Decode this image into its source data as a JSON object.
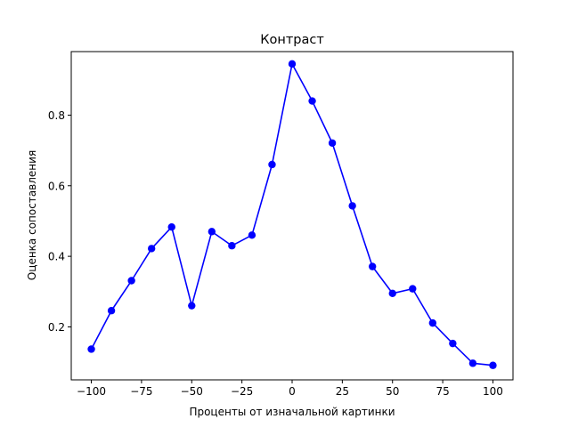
{
  "chart_data": {
    "type": "line",
    "title": "Контраст",
    "xlabel": "Проценты от изначальной картинки",
    "ylabel": "Оценка сопоставления",
    "xlim": [
      -110,
      110
    ],
    "ylim": [
      0.05,
      0.98
    ],
    "xticks": [
      -100,
      -75,
      -50,
      -25,
      0,
      25,
      50,
      75,
      100
    ],
    "xtick_labels": [
      "−100",
      "−75",
      "−50",
      "−25",
      "0",
      "25",
      "50",
      "75",
      "100"
    ],
    "yticks": [
      0.2,
      0.4,
      0.6,
      0.8
    ],
    "ytick_labels": [
      "0.2",
      "0.4",
      "0.6",
      "0.8"
    ],
    "grid": false,
    "series": [
      {
        "color": "#0000ff",
        "marker": "circle",
        "x": [
          -100,
          -90,
          -80,
          -70,
          -60,
          -50,
          -40,
          -30,
          -20,
          -10,
          0,
          10,
          20,
          30,
          40,
          50,
          60,
          70,
          80,
          90,
          100
        ],
        "y": [
          0.137,
          0.246,
          0.331,
          0.422,
          0.483,
          0.26,
          0.47,
          0.43,
          0.46,
          0.66,
          0.945,
          0.84,
          0.721,
          0.543,
          0.371,
          0.295,
          0.308,
          0.211,
          0.153,
          0.097,
          0.091
        ]
      }
    ]
  }
}
